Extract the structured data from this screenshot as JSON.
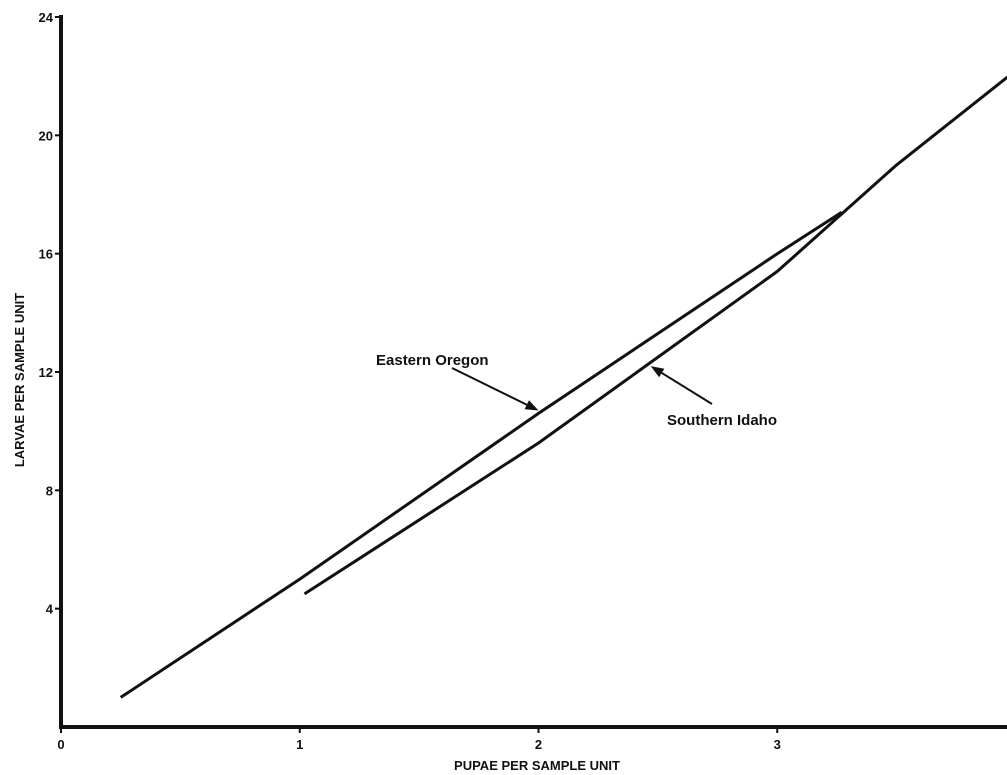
{
  "chart_data": {
    "type": "line",
    "xlabel": "PUPAE PER SAMPLE UNIT",
    "ylabel": "LARVAE PER SAMPLE UNIT",
    "xlim": [
      0,
      4
    ],
    "ylim": [
      0,
      24
    ],
    "x_ticks": [
      "0",
      "1",
      "2",
      "3"
    ],
    "y_ticks": [
      "4",
      "8",
      "12",
      "16",
      "20",
      "24"
    ],
    "grid": false,
    "series": [
      {
        "name": "Eastern Oregon",
        "x": [
          0.25,
          1.0,
          2.0,
          3.0,
          3.27
        ],
        "y": [
          1.0,
          5.0,
          10.6,
          16.0,
          17.4
        ]
      },
      {
        "name": "Southern Idaho",
        "x": [
          1.02,
          2.0,
          3.0,
          3.5,
          4.0
        ],
        "y": [
          4.5,
          9.6,
          15.4,
          19.0,
          22.2
        ]
      }
    ],
    "annotations": [
      {
        "text": "Eastern Oregon",
        "points_to": {
          "x": 2.0,
          "y": 10.7
        }
      },
      {
        "text": "Southern Idaho",
        "points_to": {
          "x": 2.47,
          "y": 12.2
        }
      }
    ]
  }
}
